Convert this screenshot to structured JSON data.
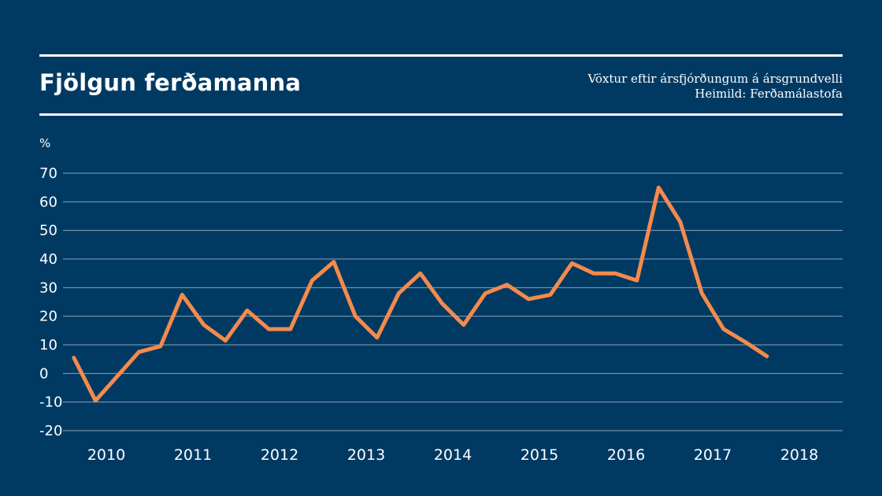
{
  "header": {
    "title": "Fjölgun ferðamanna",
    "subtitle": "Vöxtur eftir ársfjórðungum á ársgrundvelli",
    "source": "Heimild: Ferðamálastofa"
  },
  "colors": {
    "background": "#003a63",
    "line": "#f58a4b",
    "grid": "#8aa3ba",
    "text": "#ffffff"
  },
  "chart_data": {
    "type": "line",
    "ylabel": "%",
    "ylim": [
      -20,
      70
    ],
    "yticks": [
      -20,
      -10,
      0,
      10,
      20,
      30,
      40,
      50,
      60,
      70
    ],
    "xticks": [
      "2010",
      "2011",
      "2012",
      "2013",
      "2014",
      "2015",
      "2016",
      "2017",
      "2018"
    ],
    "x_start": 2009.625,
    "x_step": 0.25,
    "grid": true,
    "series": [
      {
        "values": [
          5.5,
          -9.5,
          -1,
          7.5,
          9.5,
          27.5,
          17,
          11.5,
          22,
          15.5,
          15.5,
          32.5,
          39,
          20,
          12.5,
          28,
          35,
          24.5,
          17,
          28,
          31,
          26,
          27.5,
          38.5,
          35,
          35,
          32.5,
          65,
          53,
          28,
          15.5,
          11,
          6
        ]
      }
    ]
  }
}
